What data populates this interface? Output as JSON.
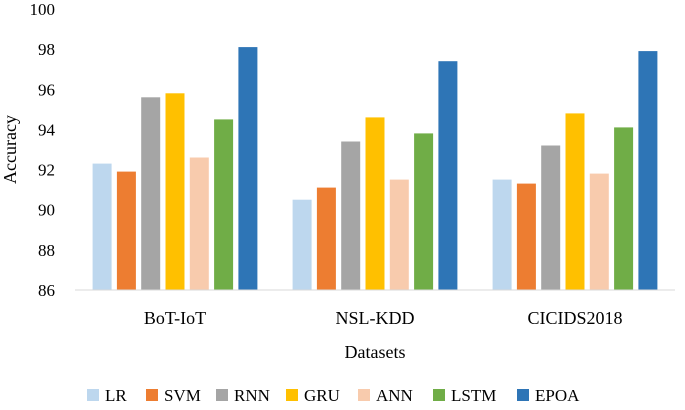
{
  "chart_data": {
    "type": "bar",
    "title": "",
    "xlabel": "Datasets",
    "ylabel": "Accuracy",
    "ylim": [
      86,
      100
    ],
    "yticks": [
      "86",
      "88",
      "90",
      "92",
      "94",
      "96",
      "98",
      "100"
    ],
    "grid": false,
    "legend_position": "bottom",
    "categories": [
      "BoT-IoT",
      "NSL-KDD",
      "CICIDS2018"
    ],
    "series": [
      {
        "name": "LR",
        "color": "#bdd7ee",
        "values": [
          92.3,
          90.5,
          91.5
        ]
      },
      {
        "name": "SVM",
        "color": "#ed7d31",
        "values": [
          91.9,
          91.1,
          91.3
        ]
      },
      {
        "name": "RNN",
        "color": "#a5a5a5",
        "values": [
          95.6,
          93.4,
          93.2
        ]
      },
      {
        "name": "GRU",
        "color": "#ffc000",
        "values": [
          95.8,
          94.6,
          94.8
        ]
      },
      {
        "name": "ANN",
        "color": "#f8cbad",
        "values": [
          92.6,
          91.5,
          91.8
        ]
      },
      {
        "name": "LSTM",
        "color": "#70ad47",
        "values": [
          94.5,
          93.8,
          94.1
        ]
      },
      {
        "name": "EPOA",
        "color": "#2e75b6",
        "values": [
          98.1,
          97.4,
          97.9
        ]
      }
    ]
  }
}
